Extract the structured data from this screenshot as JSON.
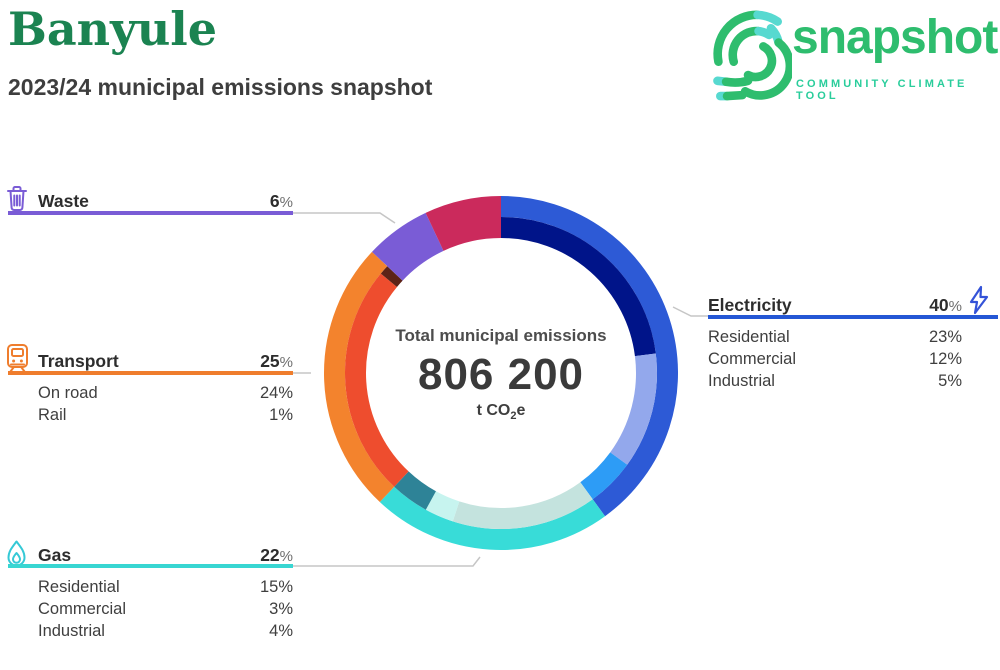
{
  "header": {
    "title": "Banyule",
    "subtitle": "2023/24 municipal emissions snapshot"
  },
  "logo": {
    "name": "snapshot",
    "tagline": "COMMUNITY CLIMATE TOOL",
    "green": "#2ebd6e",
    "teal": "#57d9d0"
  },
  "center": {
    "label": "Total municipal emissions",
    "value": "806 200",
    "unit_prefix": "t CO",
    "unit_sub": "2",
    "unit_suffix": "e"
  },
  "palette": {
    "waste": "#7a5cd6",
    "transport": "#ef7d2d",
    "gas": "#38d6d2",
    "electricity": "#2457d5",
    "leader_gray": "#c6c6c6"
  },
  "sections": {
    "waste": {
      "label": "Waste",
      "value": "6",
      "unit": "%"
    },
    "transport": {
      "label": "Transport",
      "value": "25",
      "unit": "%",
      "rows": [
        {
          "label": "On road",
          "value": "24%"
        },
        {
          "label": "Rail",
          "value": "1%"
        }
      ]
    },
    "gas": {
      "label": "Gas",
      "value": "22",
      "unit": "%",
      "rows": [
        {
          "label": "Residential",
          "value": "15%"
        },
        {
          "label": "Commercial",
          "value": "3%"
        },
        {
          "label": "Industrial",
          "value": "4%"
        }
      ]
    },
    "electricity": {
      "label": "Electricity",
      "value": "40",
      "unit": "%",
      "rows": [
        {
          "label": "Residential",
          "value": "23%"
        },
        {
          "label": "Commercial",
          "value": "12%"
        },
        {
          "label": "Industrial",
          "value": "5%"
        }
      ]
    }
  },
  "chart_data": {
    "type": "donut",
    "title": "Total municipal emissions",
    "total_value": 806200,
    "total_display": "806 200",
    "unit": "t CO2e",
    "start_angle_deg": 0,
    "direction": "clockwise",
    "segments": [
      {
        "label": "Electricity",
        "pct": 40,
        "color": "#2d5ad6",
        "subsegments": [
          {
            "label": "Residential",
            "pct": 23,
            "color": "#001489"
          },
          {
            "label": "Commercial",
            "pct": 12,
            "color": "#93a8ec"
          },
          {
            "label": "Industrial",
            "pct": 5,
            "color": "#2d9cf6"
          }
        ]
      },
      {
        "label": "Gas",
        "pct": 22,
        "color": "#38dcd8",
        "subsegments": [
          {
            "label": "Residential",
            "pct": 15,
            "color": "#c4e3de"
          },
          {
            "label": "Commercial",
            "pct": 3,
            "color": "#c7f4ef"
          },
          {
            "label": "Industrial",
            "pct": 4,
            "color": "#2e8397"
          }
        ]
      },
      {
        "label": "Transport",
        "pct": 25,
        "color": "#f3832d",
        "subsegments": [
          {
            "label": "On road",
            "pct": 24,
            "color": "#ee4d2e"
          },
          {
            "label": "Rail",
            "pct": 1,
            "color": "#5c2317"
          }
        ]
      },
      {
        "label": "Waste",
        "pct": 6,
        "color": "#7a5cd6",
        "subsegments": []
      },
      {
        "label": "",
        "pct": 7,
        "color": "#cb2a5c",
        "subsegments": []
      }
    ]
  }
}
